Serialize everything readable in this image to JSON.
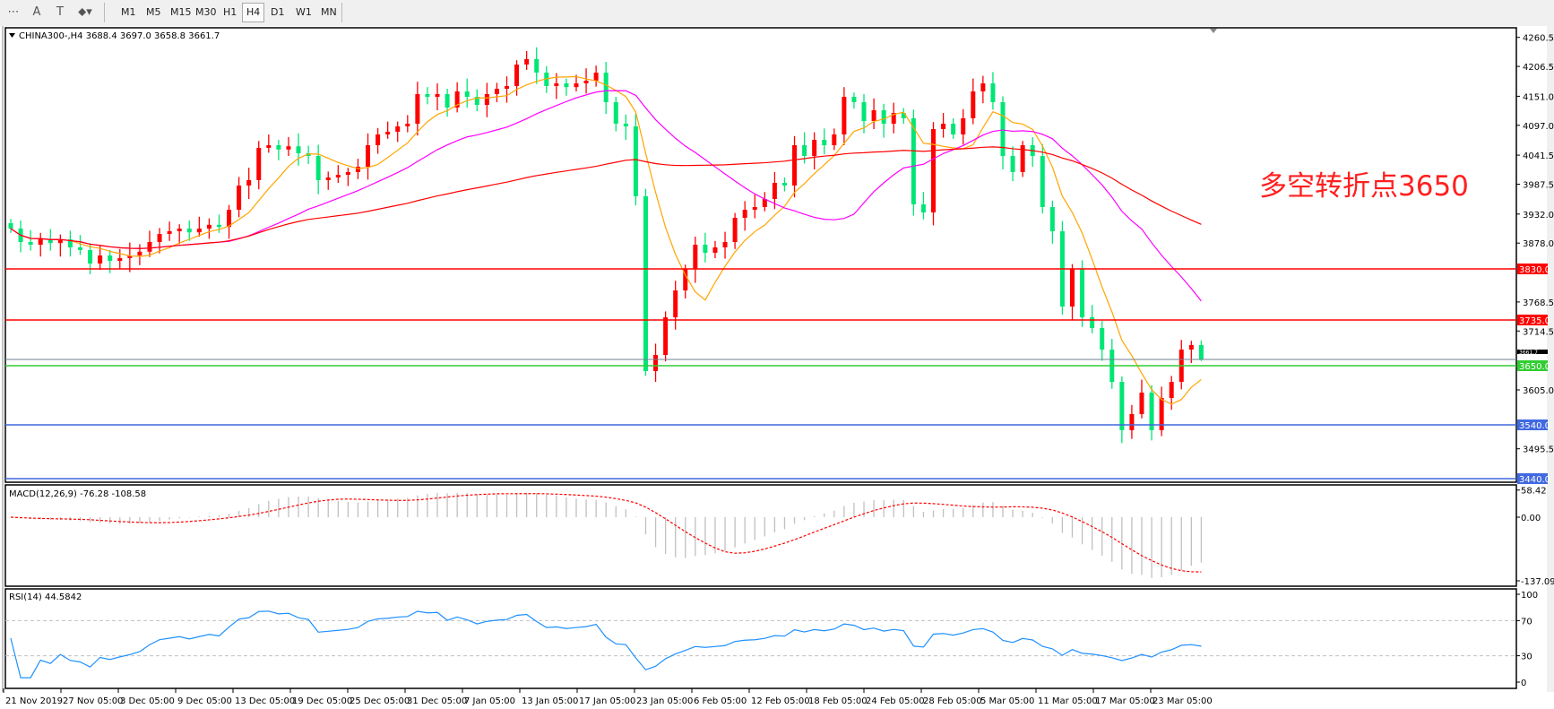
{
  "toolbar": {
    "tools": [
      {
        "name": "fibonacci-fan-icon",
        "glyph": "⋯"
      },
      {
        "name": "text-icon",
        "glyph": "A"
      },
      {
        "name": "text-label-icon",
        "glyph": "T"
      },
      {
        "name": "arrows-icon",
        "glyph": "⬥▾"
      }
    ],
    "timeframes": [
      "M1",
      "M5",
      "M15",
      "M30",
      "H1",
      "H4",
      "D1",
      "W1",
      "MN"
    ],
    "active_timeframe": "H4"
  },
  "chart": {
    "header": "CHINA300-,H4  3688.4 3697.0 3658.8 3661.7",
    "annotation": "多空转折点3650",
    "colors": {
      "bull": "#ff0000",
      "bear": "#00e676",
      "ma_fast": "#ffa500",
      "ma_mid": "#ff00ff",
      "ma_slow": "#ff0000",
      "macd_hist": "#c0c0c0",
      "macd_signal": "#ff0000",
      "rsi": "#1e90ff"
    }
  },
  "chart_data": {
    "type": "candlestick",
    "symbol": "CHINA300-",
    "timeframe": "H4",
    "last_ohlc": {
      "open": 3688.4,
      "high": 3697.0,
      "low": 3658.8,
      "close": 3661.7
    },
    "close": [
      3905,
      3880,
      3875,
      3885,
      3878,
      3885,
      3870,
      3865,
      3840,
      3855,
      3845,
      3850,
      3855,
      3862,
      3880,
      3895,
      3900,
      3905,
      3898,
      3905,
      3912,
      3908,
      3940,
      3985,
      3995,
      4055,
      4060,
      4052,
      4058,
      4045,
      4040,
      3995,
      4000,
      4005,
      4010,
      4020,
      4060,
      4080,
      4085,
      4095,
      4100,
      4155,
      4150,
      4155,
      4130,
      4160,
      4150,
      4135,
      4155,
      4165,
      4170,
      4210,
      4220,
      4195,
      4170,
      4175,
      4168,
      4175,
      4180,
      4195,
      4140,
      4100,
      4095,
      3965,
      3640,
      3670,
      3740,
      3790,
      3830,
      3875,
      3860,
      3870,
      3880,
      3925,
      3940,
      3945,
      3960,
      3990,
      3985,
      4060,
      4040,
      4070,
      4060,
      4080,
      4150,
      4140,
      4105,
      4125,
      4100,
      4120,
      4110,
      3950,
      3935,
      4090,
      4100,
      4080,
      4110,
      4160,
      4175,
      4140,
      4040,
      4010,
      4060,
      4040,
      3945,
      3900,
      3760,
      3830,
      3740,
      3720,
      3680,
      3620,
      3530,
      3560,
      3600,
      3530,
      3590,
      3620,
      3680,
      3688.4,
      3661.7
    ],
    "price_ticks": [
      "4260.5",
      "4206.5",
      "4151.0",
      "4097.0",
      "4041.5",
      "3987.5",
      "3932.0",
      "3878.0",
      "3768.5",
      "3714.5",
      "3605.0",
      "3495.5"
    ],
    "ylim": [
      3440,
      4260.5
    ],
    "levels": [
      {
        "price": 3830.0,
        "label": "3830.0",
        "color": "#ff0000"
      },
      {
        "price": 3735.0,
        "label": "3735.0",
        "color": "#ff0000"
      },
      {
        "price": 3650.0,
        "label": "3650.0",
        "color": "#32cd32"
      },
      {
        "price": 3540.0,
        "label": "3540.0",
        "color": "#4169e1"
      },
      {
        "price": 3440.0,
        "label": "3440.0",
        "color": "#4169e1"
      }
    ],
    "current_price": {
      "price": 3661.7,
      "label": "3661.7"
    },
    "x_labels": [
      "21 Nov 2019",
      "27 Nov 05:00",
      "3 Dec 05:00",
      "9 Dec 05:00",
      "13 Dec 05:00",
      "19 Dec 05:00",
      "25 Dec 05:00",
      "31 Dec 05:00",
      "7 Jan 05:00",
      "13 Jan 05:00",
      "17 Jan 05:00",
      "23 Jan 05:00",
      "6 Feb 05:00",
      "12 Feb 05:00",
      "18 Feb 05:00",
      "24 Feb 05:00",
      "28 Feb 05:00",
      "5 Mar 05:00",
      "11 Mar 05:00",
      "17 Mar 05:00",
      "23 Mar 05:00"
    ],
    "macd": {
      "label": "MACD(12,26,9) -76.28 -108.58",
      "ticks": [
        "58.42",
        "0.00",
        "-137.09"
      ],
      "max": 58.42,
      "min": -137.09
    },
    "rsi": {
      "label": "RSI(14) 44.5842",
      "ticks": [
        "100",
        "70",
        "30",
        "0"
      ],
      "levels": [
        70,
        30
      ]
    }
  }
}
